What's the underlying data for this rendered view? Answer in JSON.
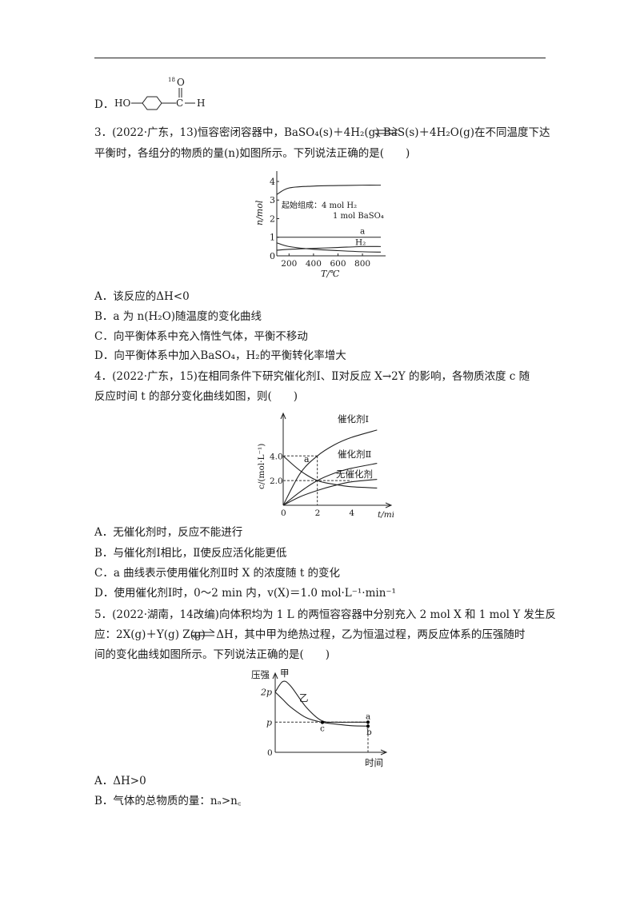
{
  "q2": {
    "option_d_label": "D．",
    "structure": {
      "ho": "HO",
      "isotope": "18",
      "o": "O",
      "c": "C",
      "h": "H"
    }
  },
  "q3": {
    "line1": "3．(2022·广东，13)恒容密闭容器中，BaSO₄(s)＋4H₂(g)      BaS(s)＋4H₂O(g)在不同温度下达",
    "line2": "平衡时，各组分的物质的量(n)如图所示。下列说法正确的是(　　)",
    "options": [
      "A．该反应的ΔH<0",
      "B．a 为 n(H₂O)随温度的变化曲线",
      "C．向平衡体系中充入惰性气体，平衡不移动",
      "D．向平衡体系中加入BaSO₄，H₂的平衡转化率增大"
    ]
  },
  "q4": {
    "line1": "4．(2022·广东，15)在相同条件下研究催化剂Ⅰ、Ⅱ对反应 X→2Y 的影响，各物质浓度 c 随",
    "line2": "反应时间 t 的部分变化曲线如图，则(　　)",
    "options": [
      "A．无催化剂时，反应不能进行",
      "B．与催化剂Ⅰ相比，Ⅱ使反应活化能更低",
      "C．a 曲线表示使用催化剂Ⅱ时 X 的浓度随 t 的变化",
      "D．使用催化剂Ⅰ时，0～2 min 内，v(X)＝1.0 mol·L⁻¹·min⁻¹"
    ]
  },
  "q5": {
    "line1": "5．(2022·湖南，14改编)向体积均为 1 L 的两恒容容器中分别充入 2 mol X 和 1 mol Y 发生反",
    "line2": "应：2X(g)＋Y(g)      Z(g)　ΔH，其中甲为绝热过程，乙为恒温过程，两反应体系的压强随时",
    "line3": "间的变化曲线如图所示。下列说法正确的是(　　)",
    "options": [
      "A．ΔH>0",
      "B．气体的总物质的量：nₐ>n꜀"
    ]
  },
  "chart_data": [
    {
      "type": "line",
      "xlabel": "T/℃",
      "ylabel": "n/mol",
      "x_ticks": [
        "200",
        "400",
        "600",
        "800"
      ],
      "y_ticks": [
        "0",
        "1",
        "2",
        "3",
        "4"
      ],
      "xlim": [
        100,
        950
      ],
      "ylim": [
        0,
        4.3
      ],
      "annotation": [
        "起始组成：4 mol H₂",
        "1 mol BaSO₄"
      ],
      "series": [
        {
          "name": "",
          "x": [
            100,
            200,
            400,
            600,
            800,
            950
          ],
          "values": [
            3.3,
            3.65,
            3.75,
            3.78,
            3.8,
            3.8
          ]
        },
        {
          "name": "a",
          "x": [
            100,
            200,
            400,
            600,
            800,
            950
          ],
          "values": [
            1.0,
            1.0,
            1.0,
            1.0,
            1.0,
            1.0
          ]
        },
        {
          "name": "H₂",
          "x": [
            100,
            200,
            400,
            600,
            800,
            950
          ],
          "values": [
            0.7,
            0.5,
            0.35,
            0.28,
            0.22,
            0.2
          ]
        },
        {
          "name": "",
          "x": [
            100,
            200,
            400,
            600,
            800,
            950
          ],
          "values": [
            0.3,
            0.35,
            0.4,
            0.45,
            0.5,
            0.5
          ]
        }
      ]
    },
    {
      "type": "line",
      "xlabel": "t/min",
      "ylabel": "c/(mol·L⁻¹)",
      "x_ticks": [
        "0",
        "2",
        "4"
      ],
      "y_ticks": [
        "2.0",
        "4.0"
      ],
      "xlim": [
        0,
        6
      ],
      "ylim": [
        0,
        7
      ],
      "series": [
        {
          "name": "催化剂Ⅰ",
          "x": [
            0,
            1,
            2,
            3,
            4,
            5.5
          ],
          "values": [
            0,
            2.6,
            4.0,
            4.9,
            5.5,
            6.1
          ]
        },
        {
          "name": "催化剂Ⅱ",
          "x": [
            0,
            1,
            2,
            3,
            4,
            5.5
          ],
          "values": [
            0,
            1.1,
            2.0,
            2.6,
            3.0,
            3.4
          ]
        },
        {
          "name": "无催化剂",
          "x": [
            0,
            1,
            2,
            3,
            4,
            5.5
          ],
          "values": [
            0,
            0.7,
            1.2,
            1.6,
            1.9,
            2.1
          ]
        },
        {
          "name": "a",
          "x": [
            0,
            1,
            2,
            3,
            4,
            5.5
          ],
          "values": [
            4.0,
            2.8,
            2.0,
            1.7,
            1.5,
            1.4
          ]
        }
      ]
    },
    {
      "type": "line",
      "xlabel": "时间",
      "ylabel": "压强",
      "y_ticks": [
        "0",
        "p",
        "2p"
      ],
      "point_labels": [
        "a",
        "b",
        "c"
      ],
      "series": [
        {
          "name": "甲",
          "x": [
            0,
            0.5,
            1,
            2,
            3,
            4,
            5,
            6
          ],
          "values": [
            2.0,
            2.35,
            2.2,
            1.5,
            1.05,
            1.0,
            1.0,
            1.0
          ]
        },
        {
          "name": "乙",
          "x": [
            0,
            0.5,
            1,
            2,
            3,
            4,
            5,
            6
          ],
          "values": [
            2.0,
            1.75,
            1.5,
            1.15,
            1.0,
            0.93,
            0.88,
            0.87
          ]
        }
      ]
    }
  ]
}
